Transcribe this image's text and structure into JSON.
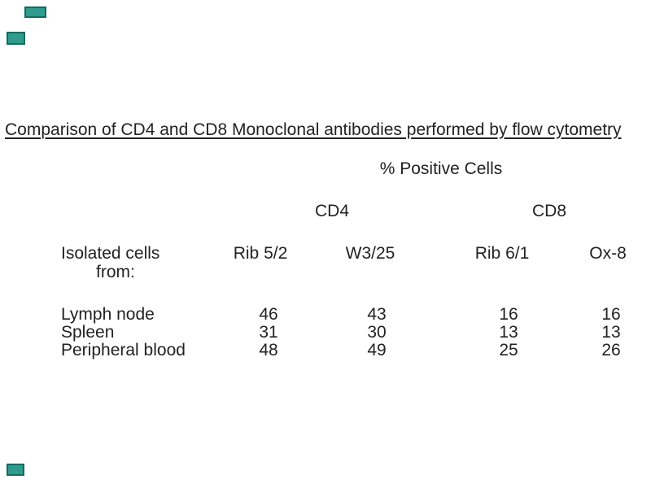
{
  "colors": {
    "background": "#ffffff",
    "text": "#222222",
    "marker_fill": "#2f9b8c",
    "marker_border": "#156a60"
  },
  "figure": {
    "title": "Comparison of CD4 and CD8 Monoclonal antibodies performed by flow cytometry",
    "subtitle": "% Positive Cells",
    "group_headers": [
      "CD4",
      "CD8"
    ],
    "row_header_line1": "Isolated cells",
    "row_header_line2": "from:",
    "columns": [
      "Rib 5/2",
      "W3/25",
      "Rib 6/1",
      "Ox-8"
    ],
    "rows": [
      {
        "label": "Lymph node",
        "values": [
          "46",
          "43",
          "16",
          "16"
        ]
      },
      {
        "label": "Spleen",
        "values": [
          "31",
          "30",
          "13",
          "13"
        ]
      },
      {
        "label": "Peripheral blood",
        "values": [
          "48",
          "49",
          "25",
          "26"
        ]
      }
    ]
  },
  "chart_data": {
    "type": "table",
    "title": "Comparison of CD4 and CD8 Monoclonal antibodies performed by flow cytometry",
    "unit": "% Positive Cells",
    "column_groups": [
      {
        "label": "CD4",
        "columns": [
          "Rib 5/2",
          "W3/25"
        ]
      },
      {
        "label": "CD8",
        "columns": [
          "Rib 6/1",
          "Ox-8"
        ]
      }
    ],
    "row_label_header": "Isolated cells from:",
    "rows": [
      {
        "label": "Lymph node",
        "values": [
          46,
          43,
          16,
          16
        ]
      },
      {
        "label": "Spleen",
        "values": [
          31,
          30,
          13,
          13
        ]
      },
      {
        "label": "Peripheral blood",
        "values": [
          48,
          49,
          25,
          26
        ]
      }
    ]
  }
}
